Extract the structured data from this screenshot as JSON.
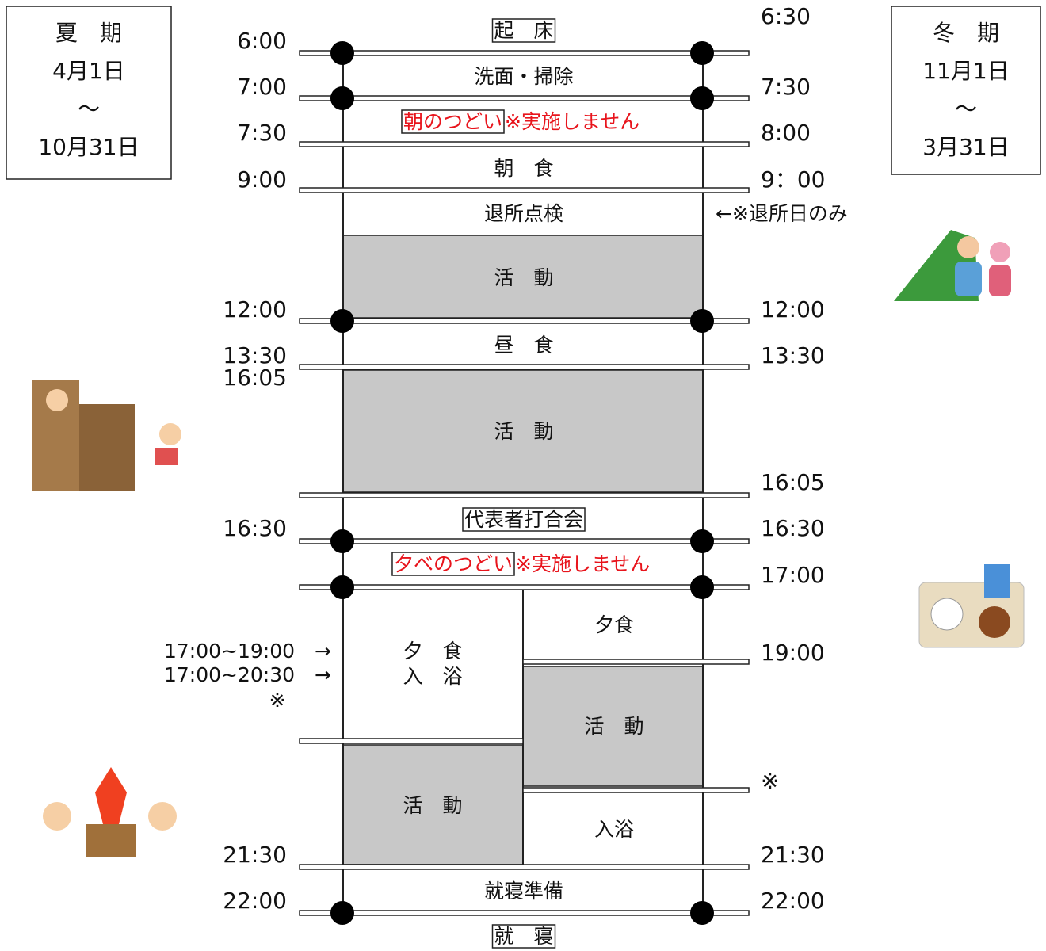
{
  "summer": {
    "season": "夏　期",
    "start": "4月1日",
    "tilde": "～",
    "end": "10月31日"
  },
  "winter": {
    "season": "冬　期",
    "start": "11月1日",
    "tilde": "～",
    "end": "3月31日"
  },
  "summer_times": [
    "6:00",
    "7:00",
    "7:30",
    "9:00",
    "12:00",
    "13:30",
    "16:05",
    "16:30",
    "21:30",
    "22:00"
  ],
  "winter_times": [
    "6:30",
    "7:30",
    "8:00",
    "9：00",
    "12:00",
    "13:30",
    "16:05",
    "16:30",
    "17:00",
    "19:00",
    "※",
    "21:30",
    "22:00"
  ],
  "summer_notes": [
    "17:00~19:00　→",
    "17:00~20:30　→",
    "※"
  ],
  "winter_note": "←※退所日のみ",
  "schedule": {
    "wake": "起　床",
    "wash": "洗面・掃除",
    "morning_gathering": "朝のつどい",
    "morning_note": "※実施しません",
    "breakfast": "朝　食",
    "checkout": "退所点検",
    "activity_am": "活　動",
    "lunch": "昼　食",
    "activity_pm": "活　動",
    "meeting": "代表者打合会",
    "evening_gathering": "夕べのつどい",
    "evening_note": "※実施しません",
    "summer_dinner": "夕　食",
    "summer_bath": "入　浴",
    "winter_dinner": "夕食",
    "winter_activity": "活　動",
    "summer_activity": "活　動",
    "winter_bath": "入浴",
    "bed_prep": "就寝準備",
    "sleep": "就　寝"
  }
}
